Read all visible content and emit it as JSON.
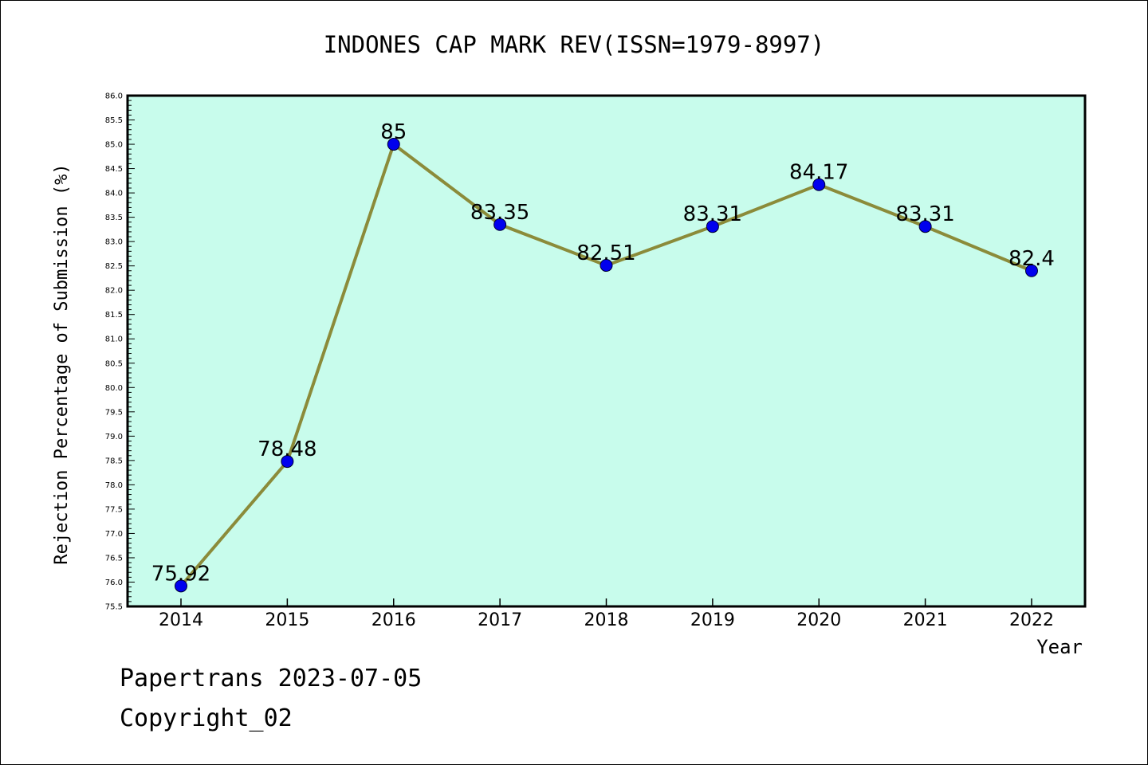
{
  "footer": {
    "line1": "Papertrans 2023-07-05",
    "line2": "Copyright_02"
  },
  "colors": {
    "plot_background": "#c8fcec",
    "line": "#8b8b3a",
    "marker": "#0000ee",
    "axis": "#000000"
  },
  "chart_data": {
    "type": "line",
    "title": "INDONES CAP MARK REV(ISSN=1979-8997)",
    "xlabel": "Year",
    "ylabel": "Rejection Percentage of Submission (%)",
    "categories": [
      "2014",
      "2015",
      "2016",
      "2017",
      "2018",
      "2019",
      "2020",
      "2021",
      "2022"
    ],
    "series": [
      {
        "values": [
          75.92,
          78.48,
          85,
          83.35,
          82.51,
          83.31,
          84.17,
          83.31,
          82.4
        ],
        "labels": [
          "75.92",
          "78.48",
          "85",
          "83.35",
          "82.51",
          "83.31",
          "84.17",
          "83.31",
          "82.4"
        ]
      }
    ],
    "ylim": [
      75.5,
      86.0
    ],
    "ytick_step": 0.5,
    "grid": false,
    "legend": "none"
  }
}
